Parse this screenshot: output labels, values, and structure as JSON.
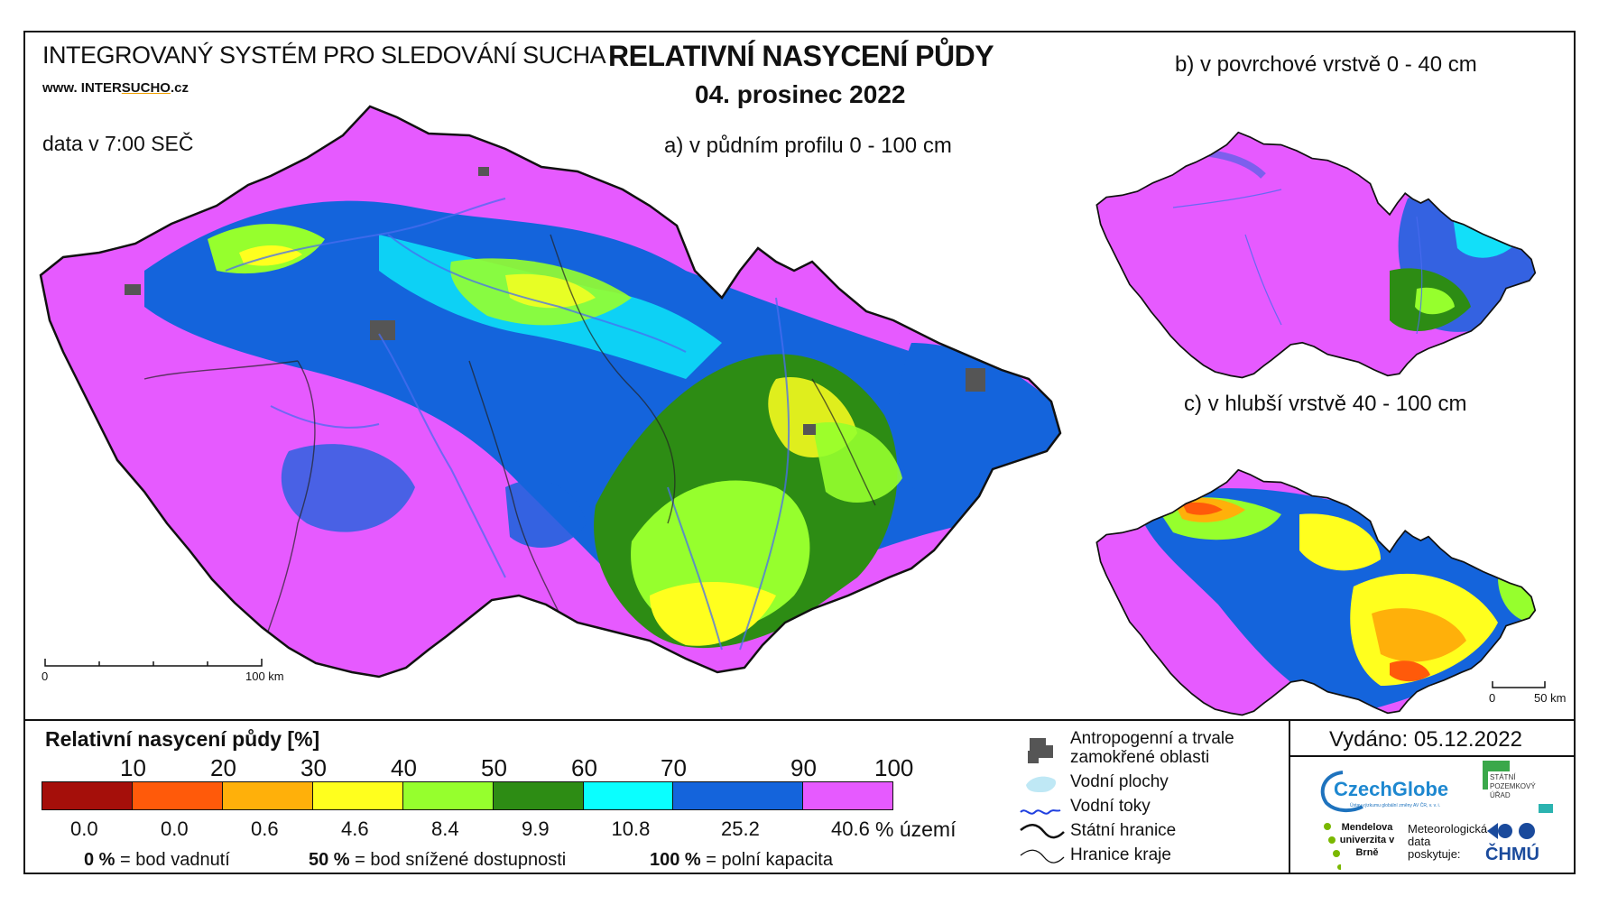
{
  "header": {
    "system_title": "INTEGROVANÝ SYSTÉM PRO SLEDOVÁNÍ SUCHA",
    "website_prefix": "www. INTER",
    "website_highlight": "SUCHO",
    "website_suffix": ".cz",
    "data_time": "data v 7:00 SEČ",
    "map_title": "RELATIVNÍ NASYCENÍ PŮDY",
    "date": "04. prosinec 2022"
  },
  "maps": {
    "main_label": "a) v půdním profilu 0 - 100 cm",
    "surface_label": "b) v povrchové vrstvě 0 - 40 cm",
    "deep_label": "c) v hlubší vrstvě 40 - 100 cm",
    "main_scale": {
      "start": "0",
      "end": "100 km"
    },
    "small_scale": {
      "start": "0",
      "end": "50 km"
    }
  },
  "legend": {
    "title": "Relativní nasycení půdy [%]",
    "thresholds": [
      "10",
      "20",
      "30",
      "40",
      "50",
      "60",
      "70",
      "90",
      "100"
    ],
    "classes": [
      {
        "color": "#a50f0a",
        "area_pct": "0.0"
      },
      {
        "color": "#ff5a0a",
        "area_pct": "0.0"
      },
      {
        "color": "#ffb00a",
        "area_pct": "0.6"
      },
      {
        "color": "#ffff1e",
        "area_pct": "4.6"
      },
      {
        "color": "#96ff2d",
        "area_pct": "8.4"
      },
      {
        "color": "#2d8c14",
        "area_pct": "9.9"
      },
      {
        "color": "#0affff",
        "area_pct": "10.8"
      },
      {
        "color": "#1464dc",
        "area_pct": "25.2"
      },
      {
        "color": "#e65aff",
        "area_pct": "40.6"
      }
    ],
    "unit": "% území",
    "notes": [
      {
        "value": "0 %",
        "text": "= bod vadnutí"
      },
      {
        "value": "50 %",
        "text": "= bod snížené dostupnosti"
      },
      {
        "value": "100 %",
        "text": "= polní kapacita"
      }
    ]
  },
  "map_legend": {
    "items": [
      {
        "icon": "urban-area-icon",
        "label": "Antropogenní a trvale zamokřené oblasti"
      },
      {
        "icon": "water-body-icon",
        "label": "Vodní plochy"
      },
      {
        "icon": "river-icon",
        "label": "Vodní toky"
      },
      {
        "icon": "state-border-icon",
        "label": "Státní hranice"
      },
      {
        "icon": "region-border-icon",
        "label": "Hranice kraje"
      }
    ]
  },
  "footer": {
    "issued": "Vydáno: 05.12.2022",
    "czechglobe": "CzechGlobe",
    "czechglobe_sub": "Ústav výzkumu globální změny AV ČR, v. v. i.",
    "spu": "STÁTNÍ POZEMKOVÝ ÚŘAD",
    "mendel": "Mendelova univerzita v Brně",
    "met_data": "Meteorologická data poskytuje:",
    "chmu": "ČHMÚ"
  }
}
